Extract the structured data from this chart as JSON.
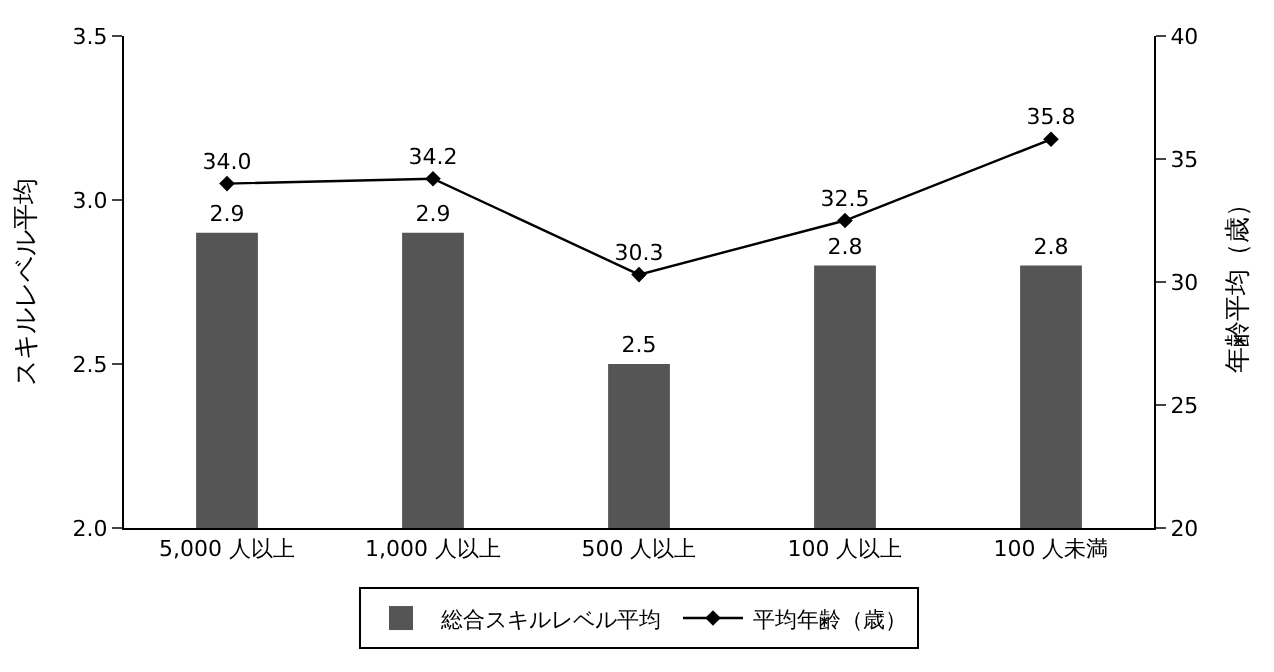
{
  "chart_data": {
    "type": "bar",
    "categories": [
      "5,000 人以上",
      "1,000 人以上",
      "500 人以上",
      "100 人以上",
      "100 人未満"
    ],
    "series": [
      {
        "name": "総合スキルレベル平均",
        "color": "#555555",
        "values": [
          2.9,
          2.9,
          2.5,
          2.8,
          2.8
        ],
        "value_labels": [
          "2.9",
          "2.9",
          "2.5",
          "2.8",
          "2.8"
        ]
      },
      {
        "name": "平均年齢（歳）",
        "type": "line",
        "axis": "y2",
        "color": "#000000",
        "marker": "diamond",
        "values": [
          34.0,
          34.2,
          30.3,
          32.5,
          35.8
        ],
        "value_labels": [
          "34.0",
          "34.2",
          "30.3",
          "32.5",
          "35.8"
        ]
      }
    ],
    "ylabel": "スキルレベル平均",
    "y2label": "年齢平均（歳）",
    "ylim": [
      2.0,
      3.5
    ],
    "yticks": [
      {
        "value": 2.0,
        "label": "2.0"
      },
      {
        "value": 2.5,
        "label": "2.5"
      },
      {
        "value": 3.0,
        "label": "3.0"
      },
      {
        "value": 3.5,
        "label": "3.5"
      }
    ],
    "y2lim": [
      20,
      40
    ],
    "y2ticks": [
      20,
      25,
      30,
      35,
      40
    ],
    "grid": false,
    "legend": "bottom"
  }
}
